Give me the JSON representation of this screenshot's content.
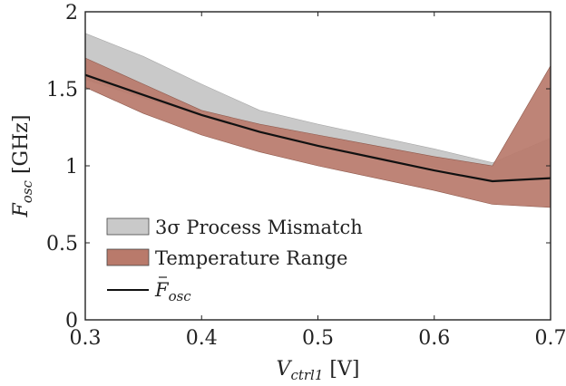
{
  "chart_data": {
    "type": "area",
    "xlabel": {
      "main": "V",
      "sub": "ctrl1",
      "unit": " [V]"
    },
    "ylabel": {
      "main": "F",
      "sub": "osc",
      "unit": " [GHz]"
    },
    "xlim": [
      0.3,
      0.7
    ],
    "ylim": [
      0,
      2
    ],
    "x_ticks": [
      {
        "value": 0.3,
        "label": "0.3"
      },
      {
        "value": 0.4,
        "label": "0.4"
      },
      {
        "value": 0.5,
        "label": "0.5"
      },
      {
        "value": 0.6,
        "label": "0.6"
      },
      {
        "value": 0.7,
        "label": "0.7"
      }
    ],
    "y_ticks": [
      {
        "value": 0,
        "label": "0"
      },
      {
        "value": 0.5,
        "label": "0.5"
      },
      {
        "value": 1,
        "label": "1"
      },
      {
        "value": 1.5,
        "label": "1.5"
      },
      {
        "value": 2,
        "label": "2"
      }
    ],
    "grid": false,
    "legend_position": "bottom-left",
    "x": [
      0.3,
      0.35,
      0.4,
      0.45,
      0.5,
      0.55,
      0.6,
      0.65,
      0.7
    ],
    "series": [
      {
        "name": "3σ Process Mismatch",
        "kind": "band",
        "color": "#c9c9c9",
        "upper": [
          1.86,
          1.71,
          1.53,
          1.36,
          1.27,
          1.19,
          1.11,
          1.02,
          1.18
        ],
        "lower": [
          1.56,
          1.44,
          1.33,
          1.23,
          1.14,
          1.06,
          0.99,
          0.91,
          0.92
        ]
      },
      {
        "name": "Temperature Range",
        "kind": "band",
        "color": "#b97a6b",
        "upper": [
          1.7,
          1.53,
          1.36,
          1.27,
          1.2,
          1.13,
          1.06,
          1.0,
          1.65
        ],
        "lower": [
          1.51,
          1.34,
          1.2,
          1.09,
          1.0,
          0.92,
          0.84,
          0.75,
          0.73
        ]
      },
      {
        "name": "F̄osc",
        "legend_main": "F",
        "legend_sub": "osc",
        "kind": "line",
        "color": "#111111",
        "values": [
          1.59,
          1.46,
          1.33,
          1.22,
          1.13,
          1.05,
          0.97,
          0.9,
          0.92
        ]
      }
    ]
  }
}
